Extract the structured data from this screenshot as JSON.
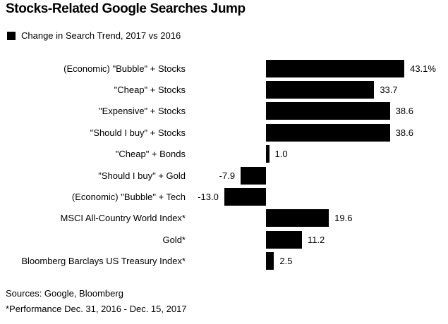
{
  "title": "Stocks-Related Google Searches Jump",
  "legend": {
    "label": "Change in Search Trend, 2017 vs 2016",
    "swatch_color": "#000000"
  },
  "chart_data": {
    "type": "bar",
    "orientation": "horizontal",
    "title": "Stocks-Related Google Searches Jump",
    "series_name": "Change in Search Trend, 2017 vs 2016",
    "categories": [
      "(Economic) \"Bubble\" + Stocks",
      "\"Cheap\" + Stocks",
      "\"Expensive\" + Stocks",
      "\"Should I buy\" + Stocks",
      "\"Cheap\" + Bonds",
      "\"Should I buy\" + Gold",
      "(Economic) \"Bubble\" + Tech",
      "MSCI All-Country World Index*",
      "Gold*",
      "Bloomberg Barclays US Treasury Index*"
    ],
    "values": [
      43.1,
      33.7,
      38.6,
      38.6,
      1.0,
      -7.9,
      -13.0,
      19.6,
      11.2,
      2.5
    ],
    "value_labels": [
      "43.1%",
      "33.7",
      "38.6",
      "38.6",
      "1.0",
      "-7.9",
      "-13.0",
      "19.6",
      "11.2",
      "2.5"
    ],
    "unit": "%",
    "xlim": [
      -13.0,
      43.1
    ],
    "bar_color": "#000000",
    "grid": false,
    "legend_position": "top-left"
  },
  "footer": {
    "sources": "Sources: Google, Bloomberg",
    "note": "*Performance Dec. 31, 2016 - Dec. 15, 2017"
  }
}
